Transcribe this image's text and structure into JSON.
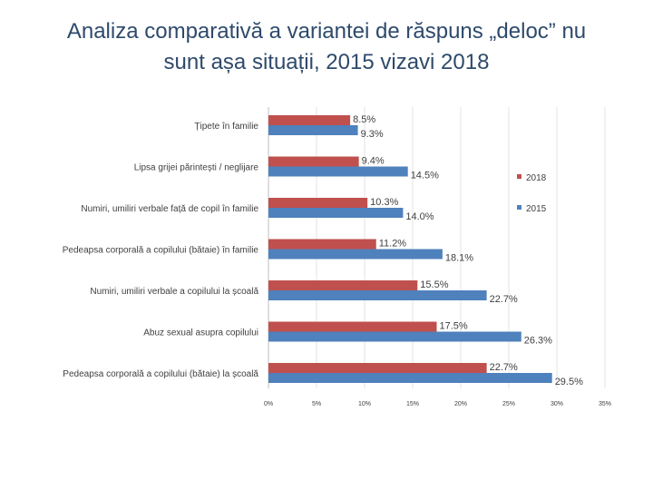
{
  "title_line1": "Analiza comparativă a variantei de răspuns „deloc” nu",
  "title_line2": "sunt așa situații, 2015 vizavi 2018",
  "chart_data": {
    "type": "bar",
    "orientation": "horizontal",
    "categories": [
      "Țipete în familie",
      "Lipsa grijei părintești / neglijare",
      "Numiri, umiliri verbale față de copil în familie",
      "Pedeapsa corporală a copilului (bătaie) în familie",
      "Numiri, umiliri verbale a copilului la școală",
      "Abuz sexual asupra copilului",
      "Pedeapsa corporală a copilului (bătaie) la școală"
    ],
    "series": [
      {
        "name": "2018",
        "color": "#c0504d",
        "values": [
          8.5,
          9.4,
          10.3,
          11.2,
          15.5,
          17.5,
          22.7
        ],
        "labels": [
          "8.5%",
          "9.4%",
          "10.3%",
          "11.2%",
          "15.5%",
          "17.5%",
          "22.7%"
        ]
      },
      {
        "name": "2015",
        "color": "#4f81bd",
        "values": [
          9.3,
          14.5,
          14.0,
          18.1,
          22.7,
          26.3,
          29.5
        ],
        "labels": [
          "9.3%",
          "14.5%",
          "14.0%",
          "18.1%",
          "22.7%",
          "26.3%",
          "29.5%"
        ]
      }
    ],
    "xlim": [
      0,
      35
    ],
    "xticks": [
      "0%",
      "5%",
      "10%",
      "15%",
      "20%",
      "25%",
      "30%",
      "35%"
    ],
    "grid": true,
    "legend": "right"
  }
}
